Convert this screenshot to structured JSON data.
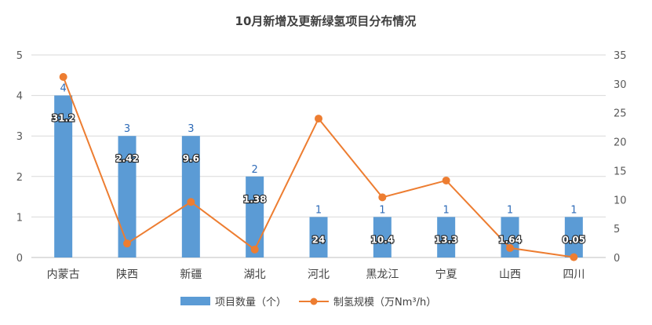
{
  "colors": {
    "bar": "#5b9bd5",
    "line": "#ed7d31",
    "bar_label": "#2e6bb8",
    "grid": "#d9d9d9"
  },
  "chart_data": {
    "type": "bar",
    "title": "10月新增及更新绿氢项目分布情况",
    "categories": [
      "内蒙古",
      "陕西",
      "新疆",
      "湖北",
      "河北",
      "黑龙江",
      "宁夏",
      "山西",
      "四川"
    ],
    "series": [
      {
        "name": "项目数量（个）",
        "type": "bar",
        "axis": "left",
        "values": [
          4,
          3,
          3,
          2,
          1,
          1,
          1,
          1,
          1
        ]
      },
      {
        "name": "制氢规模（万Nm³/h）",
        "type": "line",
        "axis": "right",
        "values": [
          31.2,
          2.42,
          9.6,
          1.38,
          24,
          10.4,
          13.3,
          1.64,
          0.05
        ]
      }
    ],
    "ylim_left": [
      0,
      5
    ],
    "yticks_left": [
      0,
      1,
      2,
      3,
      4,
      5
    ],
    "ylim_right": [
      0,
      35
    ],
    "yticks_right": [
      0,
      5,
      10,
      15,
      20,
      25,
      30,
      35
    ],
    "grid": true,
    "legend_position": "bottom"
  }
}
